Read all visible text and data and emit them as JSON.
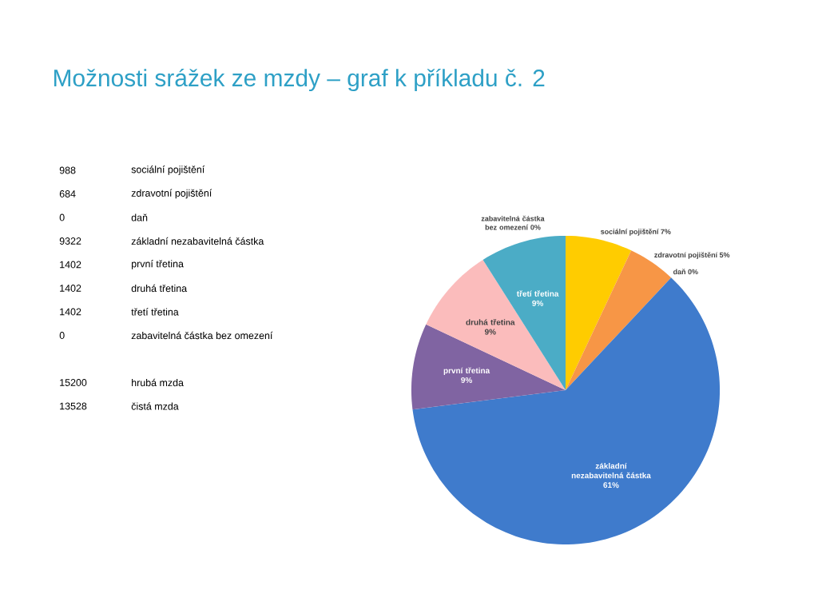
{
  "chart_data": {
    "type": "pie",
    "title": "Možnosti srážek ze mzdy – graf k příkladu č. 2",
    "categories": [
      "sociální pojištění",
      "zdravotní pojištění",
      "daň",
      "základní nezabavitelná částka",
      "první třetina",
      "druhá třetina",
      "třetí třetina",
      "zabavitelná částka bez omezení"
    ],
    "values": [
      7,
      5,
      0,
      61,
      9,
      9,
      9,
      0
    ],
    "value_labels": [
      "7%",
      "5%",
      "0%",
      "61%",
      "9%",
      "9%",
      "9%",
      "0%"
    ],
    "colors": [
      "#ffcc00",
      "#f79646",
      "#c0504d",
      "#3f7bcc",
      "#8064a2",
      "#fbbcbc",
      "#4bacc6",
      "#9bbb59"
    ],
    "annotations": [
      "988",
      "sociální pojištění",
      "684",
      "zdravotní pojištění",
      "0",
      "daň",
      "9322",
      "základní nezabavitelná částka",
      "1402",
      "první třetina",
      "1402",
      "druhá třetina",
      "1402",
      "třetí třetina",
      "0",
      "zabavitelná částka bez omezení",
      "15200",
      "hrubá mzda",
      "13528",
      "čistá mzda"
    ]
  }
}
